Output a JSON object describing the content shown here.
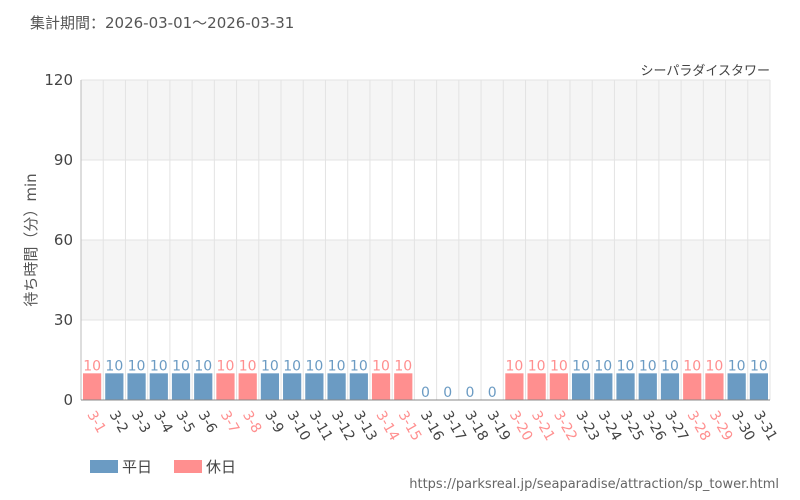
{
  "header": {
    "period": "集計期間：2026-03-01～2026-03-31"
  },
  "footer": {
    "source": "https://parksreal.jp/seaparadise/attraction/sp_tower.html"
  },
  "chart_data": {
    "type": "bar",
    "title": "シーパラダイスタワー",
    "ylabel": "待ち時間（分）min",
    "ylim": [
      0,
      120
    ],
    "yticks": [
      0,
      30,
      60,
      90,
      120
    ],
    "grid": true,
    "legend_position": "bottom-left",
    "colors": {
      "weekday": "#6b9bc3",
      "holiday": "#ff8f8f",
      "grid": "#e3e3e3",
      "band": "#f5f5f5"
    },
    "categories": [
      "3-1",
      "3-2",
      "3-3",
      "3-4",
      "3-5",
      "3-6",
      "3-7",
      "3-8",
      "3-9",
      "3-10",
      "3-11",
      "3-12",
      "3-13",
      "3-14",
      "3-15",
      "3-16",
      "3-17",
      "3-18",
      "3-19",
      "3-20",
      "3-21",
      "3-22",
      "3-23",
      "3-24",
      "3-25",
      "3-26",
      "3-27",
      "3-28",
      "3-29",
      "3-30",
      "3-31"
    ],
    "values": [
      10,
      10,
      10,
      10,
      10,
      10,
      10,
      10,
      10,
      10,
      10,
      10,
      10,
      10,
      10,
      0,
      0,
      0,
      0,
      10,
      10,
      10,
      10,
      10,
      10,
      10,
      10,
      10,
      10,
      10,
      10
    ],
    "day_types": [
      "holiday",
      "weekday",
      "weekday",
      "weekday",
      "weekday",
      "weekday",
      "holiday",
      "holiday",
      "weekday",
      "weekday",
      "weekday",
      "weekday",
      "weekday",
      "holiday",
      "holiday",
      "weekday",
      "weekday",
      "weekday",
      "weekday",
      "holiday",
      "holiday",
      "holiday",
      "weekday",
      "weekday",
      "weekday",
      "weekday",
      "weekday",
      "holiday",
      "holiday",
      "weekday",
      "weekday"
    ],
    "legend": [
      {
        "key": "weekday",
        "label": "平日"
      },
      {
        "key": "holiday",
        "label": "休日"
      }
    ]
  }
}
